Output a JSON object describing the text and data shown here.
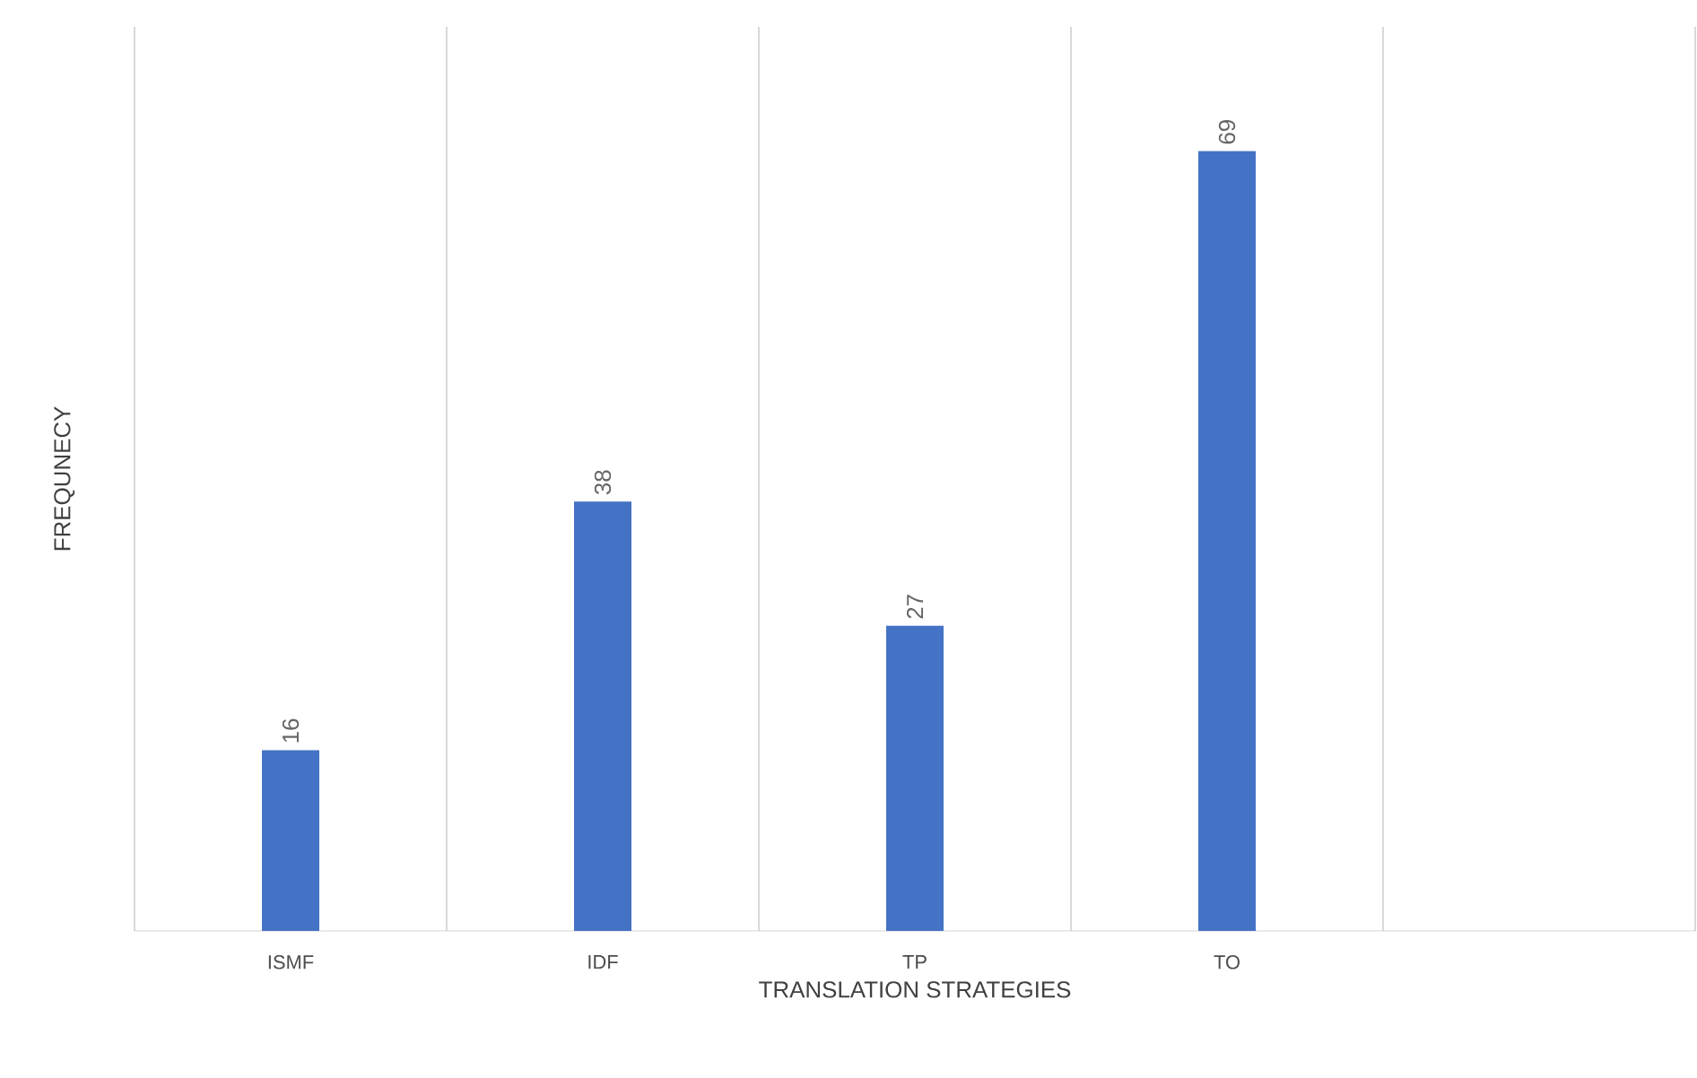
{
  "chart_data": {
    "type": "bar",
    "xlabel": "TRANSLATION STRATEGIES",
    "ylabel": "FREQUNECY",
    "categories": [
      "ISMF",
      "IDF",
      "TP",
      "TO",
      null
    ],
    "values": [
      16,
      38,
      27,
      69,
      null
    ],
    "color": "#4472c4",
    "ylim": [
      0,
      80
    ],
    "data_labels": true,
    "grid": "x"
  }
}
